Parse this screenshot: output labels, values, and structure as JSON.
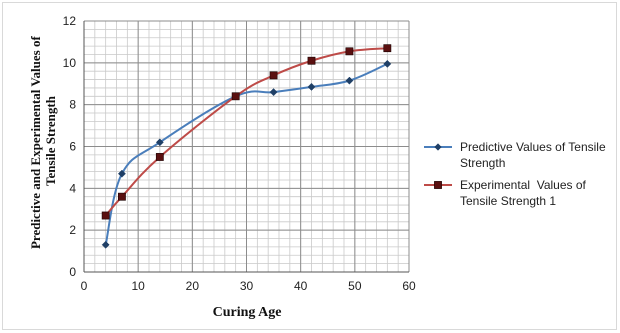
{
  "chart_data": {
    "type": "line",
    "xlabel": "Curing Age",
    "ylabel": "Predictive and Experimental Values of Tensile Strength",
    "ylabel_lines": [
      "Predictive and Experimental Values of",
      "Tensile Strength"
    ],
    "xlim": [
      0,
      60
    ],
    "ylim": [
      0,
      12
    ],
    "x_ticks": [
      0,
      10,
      20,
      30,
      40,
      50,
      60
    ],
    "y_ticks": [
      0,
      2,
      4,
      6,
      8,
      10,
      12
    ],
    "grid": true,
    "minor_grid": true,
    "legend_position": "right",
    "series": [
      {
        "name": "Predictive Values of Tensile Strength",
        "legend_lines": [
          "Predictive Values of Tensile",
          "Strength"
        ],
        "color": "#4a7ebb",
        "marker": "diamond",
        "marker_color": "#1f3f66",
        "x": [
          4,
          7,
          14,
          28,
          35,
          42,
          49,
          56
        ],
        "y": [
          1.3,
          4.7,
          6.2,
          8.4,
          8.6,
          8.85,
          9.15,
          9.95
        ]
      },
      {
        "name": "Experimental Values of Tensile Strength 1",
        "legend_lines": [
          "Experimental  Values of",
          "Tensile Strength 1"
        ],
        "color": "#be4b48",
        "marker": "square",
        "marker_color": "#5a1010",
        "x": [
          4,
          7,
          14,
          28,
          35,
          42,
          49,
          56
        ],
        "y": [
          2.7,
          3.6,
          5.5,
          8.4,
          9.4,
          10.1,
          10.55,
          10.7
        ]
      }
    ]
  }
}
